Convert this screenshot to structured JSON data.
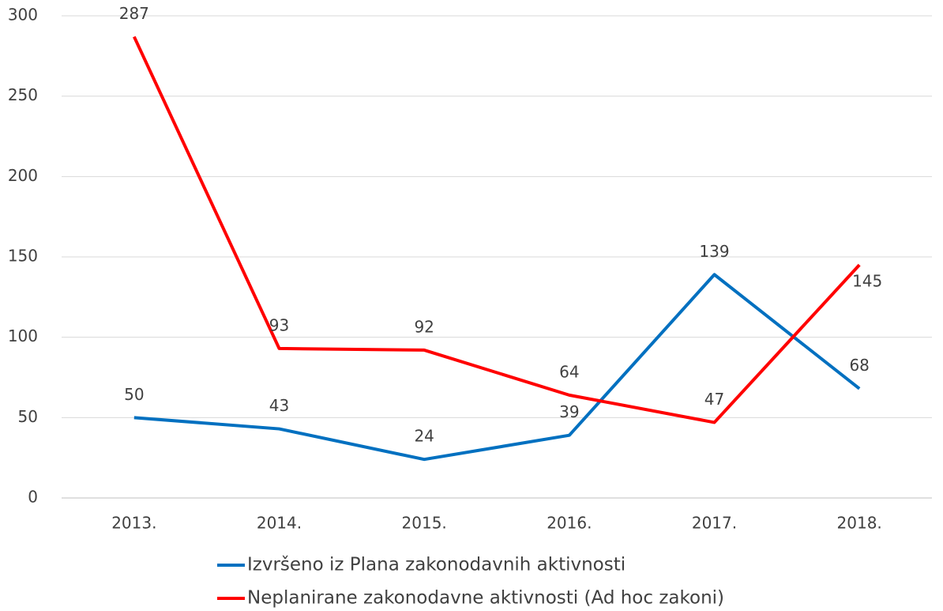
{
  "chart_data": {
    "type": "line",
    "categories": [
      "2013.",
      "2014.",
      "2015.",
      "2016.",
      "2017.",
      "2018."
    ],
    "series": [
      {
        "name": "Izvršeno iz Plana zakonodavnih aktivnosti",
        "color": "#0070c0",
        "values": [
          50,
          43,
          24,
          39,
          139,
          68
        ]
      },
      {
        "name": "Neplanirane zakonodavne aktivnosti (Ad hoc zakoni)",
        "color": "#ff0000",
        "values": [
          287,
          93,
          92,
          64,
          47,
          145
        ]
      }
    ],
    "ylim": [
      0,
      300
    ],
    "yticks": [
      0,
      50,
      100,
      150,
      200,
      250,
      300
    ],
    "grid": true,
    "legend": "bottom"
  }
}
